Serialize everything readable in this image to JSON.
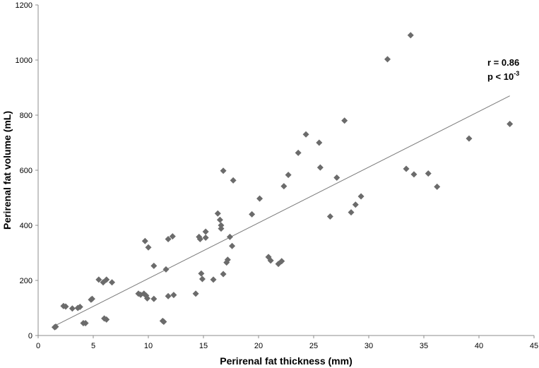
{
  "chart_data": {
    "type": "scatter",
    "title": "",
    "xlabel": "Perirenal fat thickness (mm)",
    "ylabel": "Perirenal fat volume (mL)",
    "xlim": [
      0,
      45
    ],
    "ylim": [
      0,
      1200
    ],
    "xticks": [
      0,
      5,
      10,
      15,
      20,
      25,
      30,
      35,
      40,
      45
    ],
    "yticks": [
      0,
      200,
      400,
      600,
      800,
      1000,
      1200
    ],
    "grid": false,
    "marker_color": "#6b6b6b",
    "line_color": "#7a7a7a",
    "annotations": {
      "r_text": "r = 0.86",
      "p_prefix": "p < 10",
      "p_exponent": "-3"
    },
    "trendline": {
      "x": [
        1.5,
        42.8
      ],
      "y": [
        35,
        870
      ]
    },
    "points": [
      {
        "x": 1.5,
        "y": 30
      },
      {
        "x": 1.6,
        "y": 32
      },
      {
        "x": 2.3,
        "y": 107
      },
      {
        "x": 2.5,
        "y": 105
      },
      {
        "x": 3.1,
        "y": 98
      },
      {
        "x": 3.6,
        "y": 100
      },
      {
        "x": 3.8,
        "y": 104
      },
      {
        "x": 4.1,
        "y": 45
      },
      {
        "x": 4.3,
        "y": 45
      },
      {
        "x": 4.8,
        "y": 130
      },
      {
        "x": 4.9,
        "y": 133
      },
      {
        "x": 5.5,
        "y": 203
      },
      {
        "x": 5.9,
        "y": 193
      },
      {
        "x": 6.0,
        "y": 62
      },
      {
        "x": 6.2,
        "y": 58
      },
      {
        "x": 6.2,
        "y": 203
      },
      {
        "x": 6.7,
        "y": 193
      },
      {
        "x": 9.1,
        "y": 152
      },
      {
        "x": 9.3,
        "y": 148
      },
      {
        "x": 9.6,
        "y": 152
      },
      {
        "x": 9.7,
        "y": 343
      },
      {
        "x": 9.8,
        "y": 145
      },
      {
        "x": 9.9,
        "y": 135
      },
      {
        "x": 10.0,
        "y": 320
      },
      {
        "x": 10.5,
        "y": 253
      },
      {
        "x": 10.5,
        "y": 133
      },
      {
        "x": 11.3,
        "y": 53
      },
      {
        "x": 11.4,
        "y": 50
      },
      {
        "x": 11.6,
        "y": 240
      },
      {
        "x": 11.8,
        "y": 350
      },
      {
        "x": 11.8,
        "y": 143
      },
      {
        "x": 12.2,
        "y": 360
      },
      {
        "x": 12.3,
        "y": 147
      },
      {
        "x": 14.3,
        "y": 152
      },
      {
        "x": 14.6,
        "y": 358
      },
      {
        "x": 14.7,
        "y": 350
      },
      {
        "x": 14.8,
        "y": 225
      },
      {
        "x": 14.9,
        "y": 205
      },
      {
        "x": 15.2,
        "y": 377
      },
      {
        "x": 15.2,
        "y": 355
      },
      {
        "x": 15.9,
        "y": 203
      },
      {
        "x": 16.3,
        "y": 443
      },
      {
        "x": 16.5,
        "y": 420
      },
      {
        "x": 16.6,
        "y": 400
      },
      {
        "x": 16.6,
        "y": 388
      },
      {
        "x": 16.8,
        "y": 598
      },
      {
        "x": 16.8,
        "y": 223
      },
      {
        "x": 17.1,
        "y": 265
      },
      {
        "x": 17.2,
        "y": 275
      },
      {
        "x": 17.4,
        "y": 358
      },
      {
        "x": 17.6,
        "y": 325
      },
      {
        "x": 17.7,
        "y": 563
      },
      {
        "x": 19.4,
        "y": 440
      },
      {
        "x": 20.1,
        "y": 497
      },
      {
        "x": 20.9,
        "y": 285
      },
      {
        "x": 21.1,
        "y": 272
      },
      {
        "x": 21.8,
        "y": 260
      },
      {
        "x": 22.1,
        "y": 270
      },
      {
        "x": 22.3,
        "y": 542
      },
      {
        "x": 22.7,
        "y": 583
      },
      {
        "x": 23.6,
        "y": 663
      },
      {
        "x": 24.3,
        "y": 730
      },
      {
        "x": 25.5,
        "y": 700
      },
      {
        "x": 25.6,
        "y": 610
      },
      {
        "x": 26.5,
        "y": 432
      },
      {
        "x": 27.1,
        "y": 573
      },
      {
        "x": 27.8,
        "y": 780
      },
      {
        "x": 28.4,
        "y": 447
      },
      {
        "x": 28.8,
        "y": 475
      },
      {
        "x": 29.3,
        "y": 505
      },
      {
        "x": 31.7,
        "y": 1003
      },
      {
        "x": 33.4,
        "y": 605
      },
      {
        "x": 33.8,
        "y": 1090
      },
      {
        "x": 34.1,
        "y": 585
      },
      {
        "x": 35.4,
        "y": 588
      },
      {
        "x": 36.2,
        "y": 540
      },
      {
        "x": 39.1,
        "y": 715
      },
      {
        "x": 42.8,
        "y": 768
      }
    ]
  }
}
